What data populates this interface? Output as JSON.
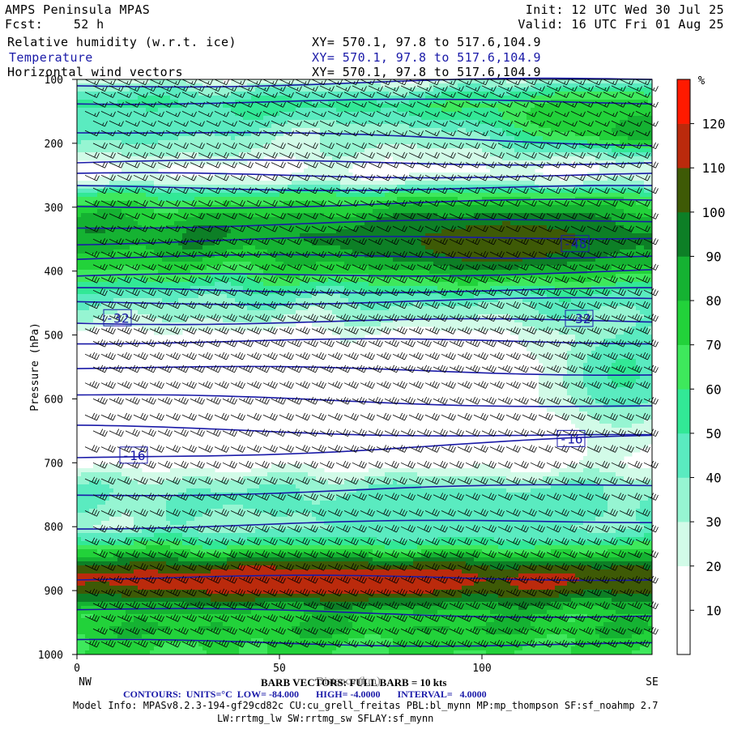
{
  "header": {
    "model": "AMPS Peninsula MPAS",
    "forecast": "Fcst:    52 h",
    "init": "Init: 12 UTC Wed 30 Jul 25",
    "valid": "Valid: 16 UTC Fri 01 Aug 25"
  },
  "fields": [
    {
      "name": "Relative humidity (w.r.t. ice)",
      "coords": "XY= 570.1, 97.8 to 517.6,104.9",
      "color": "#000000"
    },
    {
      "name": "Temperature",
      "coords": "XY= 570.1, 97.8 to 517.6,104.9",
      "color": "#1a1aa8"
    },
    {
      "name": "Horizontal wind vectors",
      "coords": "XY= 570.1, 97.8 to 517.6,104.9",
      "color": "#000000"
    }
  ],
  "footer": {
    "barb": "BARB VECTORS: FULL BARB = 10 kts",
    "xlabel_overlap": "Distance (km)",
    "contours": "CONTOURS:  UNITS=°C  LOW= -84.000       HIGH= -4.0000       INTERVAL=   4.0000",
    "model_info": "Model Info: MPASv8.2.3-194-gf29cd82c CU:cu_grell_freitas PBL:bl_mynn MP:mp_thompson SF:sf_noahmp 2.7",
    "model_info2": "LW:rrtmg_lw SW:rrtmg_sw SFLAY:sf_mynn"
  },
  "chart_data": {
    "type": "heatmap",
    "xlabel": "Distance (km)",
    "ylabel": "Pressure (hPa)",
    "xlim": [
      0,
      142
    ],
    "ylim": [
      1000,
      100
    ],
    "x_ticks": [
      "0",
      "50",
      "100"
    ],
    "x_tick_values": [
      0,
      50,
      100
    ],
    "x_end_labels": {
      "left": "NW",
      "right": "SE"
    },
    "y_ticks": [
      "100",
      "200",
      "300",
      "400",
      "500",
      "600",
      "700",
      "800",
      "900",
      "1000"
    ],
    "y_tick_values": [
      100,
      200,
      300,
      400,
      500,
      600,
      700,
      800,
      900,
      1000
    ],
    "colorbar": {
      "unit": "%",
      "labels": [
        "10",
        "20",
        "30",
        "40",
        "50",
        "60",
        "70",
        "80",
        "90",
        "100",
        "110",
        "120"
      ],
      "levels": [
        0,
        10,
        20,
        30,
        40,
        50,
        60,
        70,
        80,
        90,
        100,
        110,
        120,
        130
      ],
      "colors": [
        "#ffffff",
        "#ffffff",
        "#d2fbe8",
        "#96f5d2",
        "#5aebc0",
        "#32e896",
        "#3ee85c",
        "#22d23a",
        "#15b232",
        "#0d7f26",
        "#3e5a06",
        "#bb2a0c",
        "#ff1a00"
      ]
    },
    "rh_profile": [
      {
        "p": 100,
        "rh": 22
      },
      {
        "p": 120,
        "rh": 42
      },
      {
        "p": 140,
        "rh": 55
      },
      {
        "p": 160,
        "rh": 45
      },
      {
        "p": 180,
        "rh": 32
      },
      {
        "p": 200,
        "rh": 30
      },
      {
        "p": 220,
        "rh": 25
      },
      {
        "p": 240,
        "rh": 15
      },
      {
        "p": 260,
        "rh": 25
      },
      {
        "p": 280,
        "rh": 58
      },
      {
        "p": 300,
        "rh": 72
      },
      {
        "p": 320,
        "rh": 82
      },
      {
        "p": 340,
        "rh": 88
      },
      {
        "p": 360,
        "rh": 85
      },
      {
        "p": 380,
        "rh": 78
      },
      {
        "p": 400,
        "rh": 68
      },
      {
        "p": 420,
        "rh": 55
      },
      {
        "p": 440,
        "rh": 42
      },
      {
        "p": 460,
        "rh": 35
      },
      {
        "p": 480,
        "rh": 28
      },
      {
        "p": 500,
        "rh": 15
      },
      {
        "p": 550,
        "rh": 8
      },
      {
        "p": 600,
        "rh": 8
      },
      {
        "p": 650,
        "rh": 8
      },
      {
        "p": 700,
        "rh": 12
      },
      {
        "p": 720,
        "rh": 28
      },
      {
        "p": 740,
        "rh": 38
      },
      {
        "p": 760,
        "rh": 40
      },
      {
        "p": 780,
        "rh": 36
      },
      {
        "p": 800,
        "rh": 32
      },
      {
        "p": 820,
        "rh": 52
      },
      {
        "p": 840,
        "rh": 72
      },
      {
        "p": 860,
        "rh": 95
      },
      {
        "p": 880,
        "rh": 108
      },
      {
        "p": 900,
        "rh": 100
      },
      {
        "p": 920,
        "rh": 85
      },
      {
        "p": 940,
        "rh": 75
      },
      {
        "p": 960,
        "rh": 80
      },
      {
        "p": 980,
        "rh": 72
      },
      {
        "p": 1000,
        "rh": 70
      }
    ],
    "rh_features": [
      {
        "type": "blob",
        "x": 104,
        "p": 360,
        "dx": 14,
        "dp": 22,
        "rh": 120
      },
      {
        "type": "blob",
        "x": 104,
        "p": 355,
        "dx": 36,
        "dp": 55,
        "rh": 104
      },
      {
        "type": "blob",
        "x": 58,
        "p": 885,
        "dx": 60,
        "dp": 30,
        "rh": 117
      },
      {
        "type": "blob",
        "x": 140,
        "p": 175,
        "dx": 15,
        "dp": 30,
        "rh": 105
      },
      {
        "type": "blob",
        "x": 125,
        "p": 160,
        "dx": 25,
        "dp": 45,
        "rh": 78
      },
      {
        "type": "blob",
        "x": 10,
        "p": 170,
        "dx": 30,
        "dp": 40,
        "rh": 48
      },
      {
        "type": "blob",
        "x": 135,
        "p": 560,
        "dx": 18,
        "dp": 100,
        "rh": 52
      },
      {
        "type": "blob",
        "x": 95,
        "p": 780,
        "dx": 50,
        "dp": 40,
        "rh": 46
      }
    ],
    "temperature_contours": [
      {
        "p_left": 110,
        "p_right": 100
      },
      {
        "p_left": 135,
        "p_right": 135
      },
      {
        "p_left": 180,
        "p_right": 200
      },
      {
        "p_left": 230,
        "p_right": 230
      },
      {
        "p_left": 250,
        "p_right": 250
      },
      {
        "p_left": 270,
        "p_right": 270
      },
      {
        "p_left": 300,
        "p_right": 290
      },
      {
        "p_left": 330,
        "p_right": 320
      },
      {
        "p_left": 355,
        "p_right": 345
      },
      {
        "p_left": 380,
        "p_right": 375
      },
      {
        "p_left": 410,
        "p_right": 400
      },
      {
        "p_left": 430,
        "p_right": 430
      },
      {
        "p_left": 450,
        "p_right": 445
      },
      {
        "p_left": 480,
        "p_right": 478
      },
      {
        "p_left": 510,
        "p_right": 510
      },
      {
        "p_left": 550,
        "p_right": 560
      },
      {
        "p_left": 595,
        "p_right": 612
      },
      {
        "p_left": 645,
        "p_right": 660
      },
      {
        "p_left": 695,
        "p_right": 660
      },
      {
        "p_left": 750,
        "p_right": 735
      },
      {
        "p_left": 800,
        "p_right": 790
      },
      {
        "p_left": 880,
        "p_right": 880
      },
      {
        "p_left": 930,
        "p_right": 940
      },
      {
        "p_left": 980,
        "p_right": 985
      }
    ],
    "contour_labels": [
      {
        "text": "-48",
        "x": 123,
        "p": 357
      },
      {
        "text": "-32",
        "x": 10,
        "p": 473
      },
      {
        "text": "-32",
        "x": 124,
        "p": 474
      },
      {
        "text": "-16",
        "x": 14,
        "p": 688
      },
      {
        "text": "-16",
        "x": 122,
        "p": 662
      }
    ],
    "wind_barbs": {
      "rows_hpa": [
        100,
        110,
        120,
        135,
        150,
        165,
        180,
        200,
        215,
        230,
        250,
        270,
        290,
        310,
        330,
        350,
        370,
        390,
        410,
        430,
        450,
        470,
        490,
        510,
        530,
        550,
        575,
        600,
        625,
        650,
        675,
        700,
        725,
        750,
        775,
        800,
        820,
        840,
        860,
        880,
        900,
        920,
        940,
        960,
        980
      ],
      "x_spacing_km": 4.0,
      "direction_deg": 245,
      "speed_kts_by_level": [
        {
          "p": 100,
          "kts": 15
        },
        {
          "p": 300,
          "kts": 20
        },
        {
          "p": 500,
          "kts": 35
        },
        {
          "p": 700,
          "kts": 30
        },
        {
          "p": 850,
          "kts": 30
        },
        {
          "p": 900,
          "kts": 35
        },
        {
          "p": 1000,
          "kts": 35
        }
      ]
    }
  }
}
